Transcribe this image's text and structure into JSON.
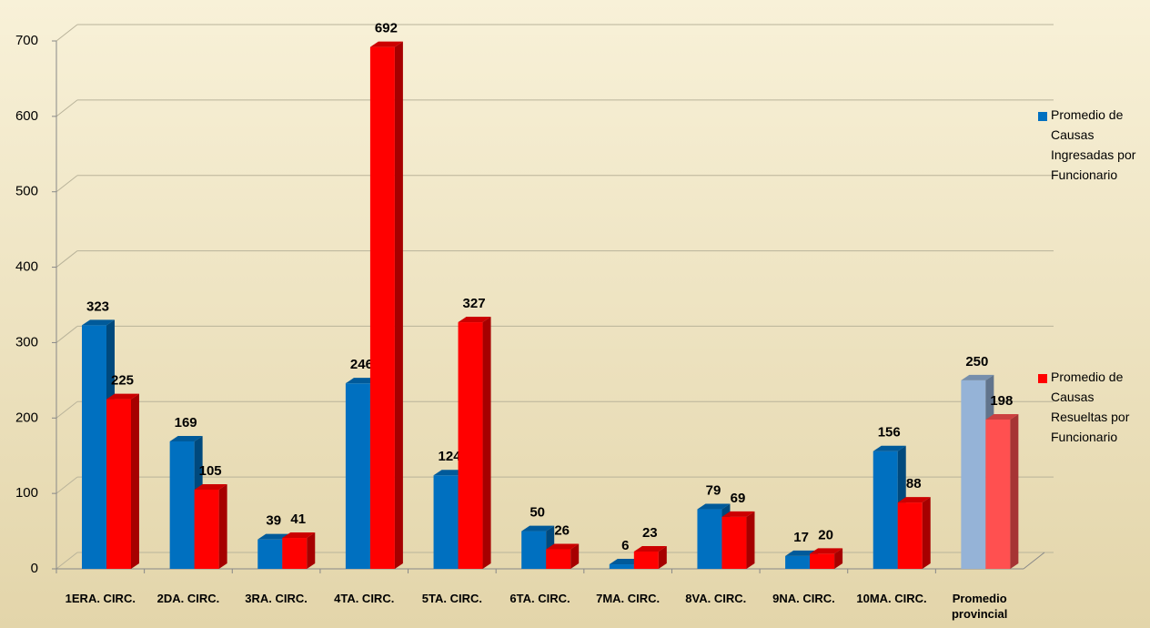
{
  "chart_data": {
    "type": "bar3d",
    "categories": [
      "1ERA. CIRC.",
      "2DA. CIRC.",
      "3RA. CIRC.",
      "4TA.  CIRC.",
      "5TA.  CIRC.",
      "6TA.  CIRC.",
      "7MA. CIRC.",
      "8VA. CIRC.",
      "9NA. CIRC.",
      "10MA. CIRC.",
      "Promedio provincial"
    ],
    "series": [
      {
        "name": "Promedio de Causas Ingresadas por Funcionario",
        "color": "#0070c0",
        "point_colors": {
          "10": "#95b3d7"
        },
        "values": [
          323,
          169,
          39,
          246,
          124,
          50,
          6,
          79,
          17,
          156,
          250
        ]
      },
      {
        "name": "Promedio de Causas Resueltas por Funcionario",
        "color": "#ff0000",
        "point_colors": {
          "10": "#ff5050"
        },
        "values": [
          225,
          105,
          41,
          692,
          327,
          26,
          23,
          69,
          20,
          88,
          198
        ]
      }
    ],
    "ylim": [
      0,
      700
    ],
    "yticks": [
      0,
      100,
      200,
      300,
      400,
      500,
      600,
      700
    ],
    "grid": true,
    "legend": "right"
  }
}
